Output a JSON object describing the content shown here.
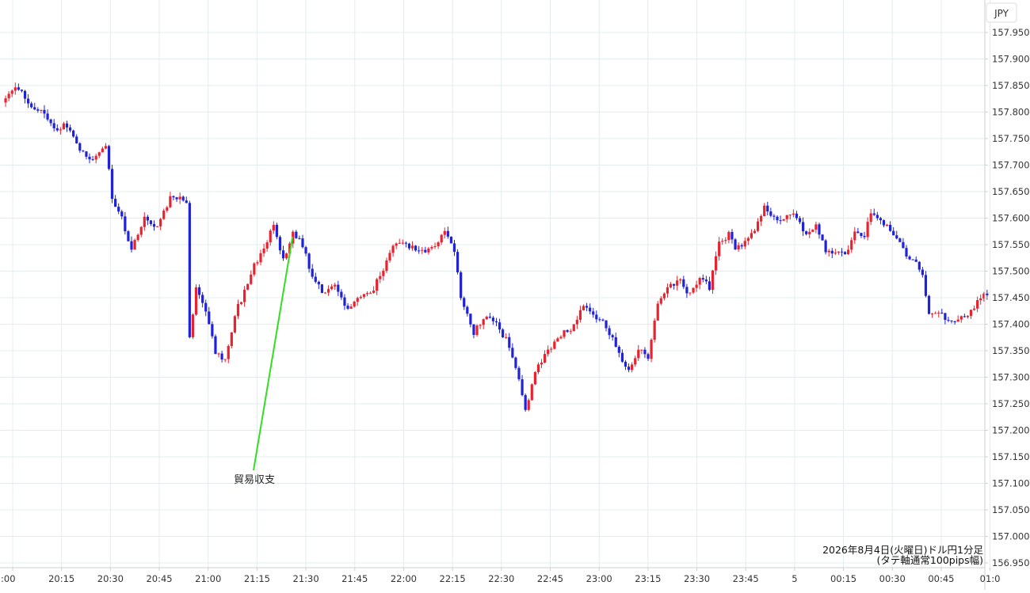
{
  "chart_data": {
    "type": "candlestick",
    "currency_label": "JPY",
    "caption_line1": "2026年8月4日(火曜日)ドル円1分足",
    "caption_line2": "(タテ軸通常100pips幅)",
    "annotation": "貿易収支",
    "ylim": [
      156.94,
      157.97
    ],
    "y_ticks": [
      "157.950",
      "157.900",
      "157.850",
      "157.800",
      "157.750",
      "157.700",
      "157.650",
      "157.600",
      "157.550",
      "157.500",
      "157.450",
      "157.400",
      "157.350",
      "157.300",
      "157.250",
      "157.200",
      "157.150",
      "157.100",
      "157.050",
      "157.000",
      "156.950"
    ],
    "x_ticks": [
      ":00",
      "20:15",
      "20:30",
      "20:45",
      "21:00",
      "21:15",
      "21:30",
      "21:45",
      "22:00",
      "22:15",
      "22:30",
      "22:45",
      "23:00",
      "23:15",
      "23:30",
      "23:45",
      "5",
      "00:15",
      "00:30",
      "00:45",
      "01:0"
    ],
    "grid": true,
    "colors": {
      "up": "#e8222e",
      "down": "#1f22d6",
      "annotation_line": "#33dd22",
      "grid": "#e3ecec"
    },
    "annotated_time_index": 90,
    "annotation_value": 157.565,
    "close_anchors": [
      [
        0,
        157.818
      ],
      [
        3,
        157.843
      ],
      [
        5,
        157.846
      ],
      [
        8,
        157.815
      ],
      [
        13,
        157.795
      ],
      [
        16,
        157.768
      ],
      [
        20,
        157.775
      ],
      [
        24,
        157.728
      ],
      [
        28,
        157.708
      ],
      [
        32,
        157.735
      ],
      [
        34,
        157.64
      ],
      [
        37,
        157.6
      ],
      [
        40,
        157.54
      ],
      [
        44,
        157.605
      ],
      [
        48,
        157.58
      ],
      [
        52,
        157.64
      ],
      [
        57,
        157.632
      ],
      [
        58,
        157.37
      ],
      [
        60,
        157.47
      ],
      [
        63,
        157.42
      ],
      [
        66,
        157.35
      ],
      [
        69,
        157.33
      ],
      [
        72,
        157.42
      ],
      [
        75,
        157.46
      ],
      [
        78,
        157.51
      ],
      [
        81,
        157.545
      ],
      [
        84,
        157.59
      ],
      [
        87,
        157.52
      ],
      [
        90,
        157.57
      ],
      [
        93,
        157.55
      ],
      [
        96,
        157.49
      ],
      [
        99,
        157.46
      ],
      [
        103,
        157.47
      ],
      [
        107,
        157.43
      ],
      [
        110,
        157.45
      ],
      [
        114,
        157.458
      ],
      [
        118,
        157.5
      ],
      [
        121,
        157.545
      ],
      [
        124,
        157.555
      ],
      [
        128,
        157.54
      ],
      [
        131,
        157.535
      ],
      [
        134,
        157.55
      ],
      [
        137,
        157.57
      ],
      [
        140,
        157.54
      ],
      [
        142,
        157.45
      ],
      [
        146,
        157.385
      ],
      [
        150,
        157.42
      ],
      [
        154,
        157.39
      ],
      [
        157,
        157.36
      ],
      [
        160,
        157.3
      ],
      [
        162,
        157.235
      ],
      [
        165,
        157.31
      ],
      [
        168,
        157.34
      ],
      [
        171,
        157.365
      ],
      [
        174,
        157.385
      ],
      [
        177,
        157.395
      ],
      [
        180,
        157.44
      ],
      [
        183,
        157.42
      ],
      [
        186,
        157.405
      ],
      [
        189,
        157.375
      ],
      [
        192,
        157.33
      ],
      [
        194,
        157.31
      ],
      [
        197,
        157.355
      ],
      [
        200,
        157.335
      ],
      [
        203,
        157.44
      ],
      [
        206,
        157.47
      ],
      [
        210,
        157.48
      ],
      [
        213,
        157.455
      ],
      [
        216,
        157.485
      ],
      [
        219,
        157.47
      ],
      [
        222,
        157.55
      ],
      [
        225,
        157.57
      ],
      [
        227,
        157.54
      ],
      [
        230,
        157.555
      ],
      [
        233,
        157.58
      ],
      [
        236,
        157.62
      ],
      [
        239,
        157.6
      ],
      [
        241,
        157.59
      ],
      [
        244,
        157.61
      ],
      [
        246,
        157.6
      ],
      [
        249,
        157.57
      ],
      [
        252,
        157.59
      ],
      [
        255,
        157.54
      ],
      [
        258,
        157.535
      ],
      [
        261,
        157.53
      ],
      [
        264,
        157.575
      ],
      [
        267,
        157.57
      ],
      [
        269,
        157.608
      ],
      [
        272,
        157.6
      ],
      [
        275,
        157.575
      ],
      [
        278,
        157.56
      ],
      [
        281,
        157.52
      ],
      [
        283,
        157.52
      ],
      [
        285,
        157.49
      ],
      [
        287,
        157.42
      ],
      [
        290,
        157.425
      ],
      [
        292,
        157.41
      ],
      [
        295,
        157.4
      ],
      [
        298,
        157.415
      ],
      [
        301,
        157.43
      ],
      [
        303,
        157.45
      ],
      [
        305,
        157.455
      ]
    ]
  }
}
